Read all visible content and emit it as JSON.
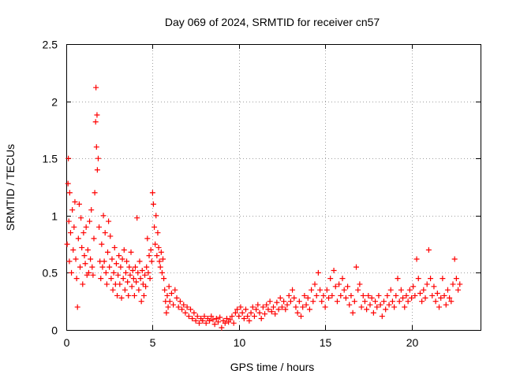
{
  "chart_data": {
    "type": "scatter",
    "title": "Day 069 of 2024, SRMTID for receiver cn57",
    "xlabel": "GPS time / hours",
    "ylabel": "SRMTID / TECUs",
    "xlim": [
      0,
      24
    ],
    "ylim": [
      0,
      2.5
    ],
    "x_ticks": [
      0,
      5,
      10,
      15,
      20
    ],
    "x_tick_labels": [
      "0",
      "5",
      "10",
      "15",
      "20"
    ],
    "y_ticks": [
      0,
      0.5,
      1,
      1.5,
      2,
      2.5
    ],
    "y_tick_labels": [
      "0",
      "0.5",
      "1",
      "1.5",
      "2",
      "2.5"
    ],
    "grid": true,
    "marker": "+",
    "color": "#ff0000",
    "series": [
      {
        "name": "cn57",
        "points": [
          [
            0.05,
            0.75
          ],
          [
            0.1,
            1.28
          ],
          [
            0.12,
            1.5
          ],
          [
            0.15,
            0.95
          ],
          [
            0.18,
            0.6
          ],
          [
            0.2,
            1.2
          ],
          [
            0.25,
            0.85
          ],
          [
            0.3,
            0.5
          ],
          [
            0.35,
            1.05
          ],
          [
            0.4,
            0.7
          ],
          [
            0.45,
            0.9
          ],
          [
            0.5,
            1.12
          ],
          [
            0.55,
            0.62
          ],
          [
            0.6,
            0.45
          ],
          [
            0.65,
            0.2
          ],
          [
            0.7,
            0.8
          ],
          [
            0.75,
            1.1
          ],
          [
            0.8,
            0.55
          ],
          [
            0.85,
            0.98
          ],
          [
            0.9,
            0.72
          ],
          [
            0.95,
            0.4
          ],
          [
            1.0,
            0.85
          ],
          [
            1.05,
            0.65
          ],
          [
            1.1,
            0.58
          ],
          [
            1.15,
            0.9
          ],
          [
            1.2,
            0.48
          ],
          [
            1.25,
            0.7
          ],
          [
            1.3,
            0.5
          ],
          [
            1.35,
            0.95
          ],
          [
            1.4,
            0.62
          ],
          [
            1.45,
            1.05
          ],
          [
            1.5,
            0.55
          ],
          [
            1.55,
            0.48
          ],
          [
            1.6,
            0.8
          ],
          [
            1.65,
            1.2
          ],
          [
            1.7,
            1.82
          ],
          [
            1.72,
            2.12
          ],
          [
            1.75,
            1.6
          ],
          [
            1.78,
            1.88
          ],
          [
            1.8,
            1.4
          ],
          [
            1.85,
            1.5
          ],
          [
            1.9,
            0.9
          ],
          [
            1.95,
            0.6
          ],
          [
            2.0,
            0.45
          ],
          [
            2.05,
            0.75
          ],
          [
            2.1,
            0.55
          ],
          [
            2.15,
            1.0
          ],
          [
            2.2,
            0.6
          ],
          [
            2.25,
            0.85
          ],
          [
            2.3,
            0.5
          ],
          [
            2.35,
            0.4
          ],
          [
            2.4,
            0.68
          ],
          [
            2.45,
            0.95
          ],
          [
            2.5,
            0.55
          ],
          [
            2.55,
            0.82
          ],
          [
            2.6,
            0.45
          ],
          [
            2.65,
            0.62
          ],
          [
            2.7,
            0.35
          ],
          [
            2.75,
            0.5
          ],
          [
            2.8,
            0.72
          ],
          [
            2.85,
            0.4
          ],
          [
            2.9,
            0.58
          ],
          [
            2.95,
            0.3
          ],
          [
            3.0,
            0.48
          ],
          [
            3.05,
            0.65
          ],
          [
            3.1,
            0.4
          ],
          [
            3.15,
            0.55
          ],
          [
            3.2,
            0.28
          ],
          [
            3.25,
            0.62
          ],
          [
            3.3,
            0.45
          ],
          [
            3.35,
            0.7
          ],
          [
            3.4,
            0.35
          ],
          [
            3.45,
            0.5
          ],
          [
            3.5,
            0.6
          ],
          [
            3.55,
            0.42
          ],
          [
            3.6,
            0.3
          ],
          [
            3.65,
            0.55
          ],
          [
            3.7,
            0.48
          ],
          [
            3.75,
            0.68
          ],
          [
            3.8,
            0.38
          ],
          [
            3.85,
            0.52
          ],
          [
            3.9,
            0.45
          ],
          [
            3.95,
            0.3
          ],
          [
            4.0,
            0.55
          ],
          [
            4.05,
            0.42
          ],
          [
            4.1,
            0.98
          ],
          [
            4.15,
            0.5
          ],
          [
            4.2,
            0.35
          ],
          [
            4.25,
            0.6
          ],
          [
            4.3,
            0.45
          ],
          [
            4.35,
            0.25
          ],
          [
            4.4,
            0.52
          ],
          [
            4.45,
            0.4
          ],
          [
            4.5,
            0.3
          ],
          [
            4.55,
            0.48
          ],
          [
            4.6,
            0.38
          ],
          [
            4.65,
            0.55
          ],
          [
            4.7,
            0.8
          ],
          [
            4.75,
            0.5
          ],
          [
            4.8,
            0.65
          ],
          [
            4.85,
            0.45
          ],
          [
            4.9,
            0.7
          ],
          [
            4.95,
            0.6
          ],
          [
            5.0,
            1.2
          ],
          [
            5.05,
            1.1
          ],
          [
            5.1,
            0.9
          ],
          [
            5.15,
            0.75
          ],
          [
            5.2,
            1.0
          ],
          [
            5.25,
            0.65
          ],
          [
            5.3,
            0.85
          ],
          [
            5.35,
            0.72
          ],
          [
            5.4,
            0.6
          ],
          [
            5.45,
            0.55
          ],
          [
            5.5,
            0.68
          ],
          [
            5.55,
            0.5
          ],
          [
            5.6,
            0.62
          ],
          [
            5.65,
            0.45
          ],
          [
            5.7,
            0.35
          ],
          [
            5.75,
            0.25
          ],
          [
            5.8,
            0.15
          ],
          [
            5.85,
            0.3
          ],
          [
            5.9,
            0.2
          ],
          [
            5.95,
            0.38
          ],
          [
            6.0,
            0.25
          ],
          [
            6.1,
            0.32
          ],
          [
            6.2,
            0.22
          ],
          [
            6.3,
            0.35
          ],
          [
            6.4,
            0.28
          ],
          [
            6.5,
            0.2
          ],
          [
            6.6,
            0.25
          ],
          [
            6.7,
            0.18
          ],
          [
            6.8,
            0.22
          ],
          [
            6.9,
            0.15
          ],
          [
            7.0,
            0.2
          ],
          [
            7.1,
            0.12
          ],
          [
            7.2,
            0.18
          ],
          [
            7.3,
            0.1
          ],
          [
            7.4,
            0.15
          ],
          [
            7.5,
            0.08
          ],
          [
            7.6,
            0.12
          ],
          [
            7.7,
            0.06
          ],
          [
            7.8,
            0.1
          ],
          [
            7.9,
            0.08
          ],
          [
            8.0,
            0.12
          ],
          [
            8.1,
            0.06
          ],
          [
            8.2,
            0.1
          ],
          [
            8.3,
            0.08
          ],
          [
            8.4,
            0.12
          ],
          [
            8.5,
            0.09
          ],
          [
            8.6,
            0.05
          ],
          [
            8.7,
            0.1
          ],
          [
            8.8,
            0.07
          ],
          [
            8.9,
            0.11
          ],
          [
            9.0,
            0.02
          ],
          [
            9.1,
            0.08
          ],
          [
            9.2,
            0.06
          ],
          [
            9.3,
            0.1
          ],
          [
            9.4,
            0.07
          ],
          [
            9.5,
            0.09
          ],
          [
            9.6,
            0.12
          ],
          [
            9.7,
            0.06
          ],
          [
            9.8,
            0.15
          ],
          [
            9.9,
            0.18
          ],
          [
            10.0,
            0.12
          ],
          [
            10.1,
            0.2
          ],
          [
            10.2,
            0.15
          ],
          [
            10.3,
            0.1
          ],
          [
            10.4,
            0.18
          ],
          [
            10.5,
            0.12
          ],
          [
            10.6,
            0.08
          ],
          [
            10.7,
            0.15
          ],
          [
            10.8,
            0.2
          ],
          [
            10.9,
            0.12
          ],
          [
            11.0,
            0.18
          ],
          [
            11.1,
            0.22
          ],
          [
            11.2,
            0.15
          ],
          [
            11.3,
            0.1
          ],
          [
            11.4,
            0.2
          ],
          [
            11.5,
            0.14
          ],
          [
            11.6,
            0.22
          ],
          [
            11.7,
            0.18
          ],
          [
            11.8,
            0.25
          ],
          [
            11.9,
            0.16
          ],
          [
            12.0,
            0.2
          ],
          [
            12.1,
            0.14
          ],
          [
            12.2,
            0.24
          ],
          [
            12.3,
            0.18
          ],
          [
            12.4,
            0.28
          ],
          [
            12.5,
            0.2
          ],
          [
            12.6,
            0.25
          ],
          [
            12.7,
            0.18
          ],
          [
            12.8,
            0.22
          ],
          [
            12.9,
            0.3
          ],
          [
            13.0,
            0.25
          ],
          [
            13.1,
            0.35
          ],
          [
            13.2,
            0.28
          ],
          [
            13.3,
            0.2
          ],
          [
            13.4,
            0.15
          ],
          [
            13.5,
            0.25
          ],
          [
            13.6,
            0.12
          ],
          [
            13.7,
            0.2
          ],
          [
            13.8,
            0.3
          ],
          [
            13.9,
            0.22
          ],
          [
            14.0,
            0.28
          ],
          [
            14.1,
            0.18
          ],
          [
            14.2,
            0.35
          ],
          [
            14.3,
            0.25
          ],
          [
            14.4,
            0.4
          ],
          [
            14.5,
            0.3
          ],
          [
            14.6,
            0.5
          ],
          [
            14.7,
            0.35
          ],
          [
            14.8,
            0.25
          ],
          [
            14.9,
            0.3
          ],
          [
            15.0,
            0.2
          ],
          [
            15.1,
            0.35
          ],
          [
            15.2,
            0.28
          ],
          [
            15.3,
            0.45
          ],
          [
            15.4,
            0.3
          ],
          [
            15.5,
            0.52
          ],
          [
            15.6,
            0.38
          ],
          [
            15.7,
            0.25
          ],
          [
            15.8,
            0.4
          ],
          [
            15.9,
            0.3
          ],
          [
            16.0,
            0.45
          ],
          [
            16.1,
            0.35
          ],
          [
            16.2,
            0.28
          ],
          [
            16.3,
            0.38
          ],
          [
            16.4,
            0.22
          ],
          [
            16.5,
            0.3
          ],
          [
            16.6,
            0.15
          ],
          [
            16.7,
            0.25
          ],
          [
            16.8,
            0.55
          ],
          [
            16.9,
            0.35
          ],
          [
            17.0,
            0.4
          ],
          [
            17.1,
            0.2
          ],
          [
            17.2,
            0.3
          ],
          [
            17.3,
            0.25
          ],
          [
            17.4,
            0.18
          ],
          [
            17.5,
            0.3
          ],
          [
            17.6,
            0.22
          ],
          [
            17.7,
            0.28
          ],
          [
            17.8,
            0.15
          ],
          [
            17.9,
            0.25
          ],
          [
            18.0,
            0.2
          ],
          [
            18.1,
            0.3
          ],
          [
            18.2,
            0.22
          ],
          [
            18.3,
            0.12
          ],
          [
            18.4,
            0.25
          ],
          [
            18.5,
            0.18
          ],
          [
            18.6,
            0.3
          ],
          [
            18.7,
            0.22
          ],
          [
            18.8,
            0.35
          ],
          [
            18.9,
            0.25
          ],
          [
            19.0,
            0.2
          ],
          [
            19.1,
            0.3
          ],
          [
            19.2,
            0.45
          ],
          [
            19.3,
            0.25
          ],
          [
            19.4,
            0.35
          ],
          [
            19.5,
            0.28
          ],
          [
            19.6,
            0.2
          ],
          [
            19.7,
            0.3
          ],
          [
            19.8,
            0.25
          ],
          [
            19.9,
            0.35
          ],
          [
            20.0,
            0.28
          ],
          [
            20.1,
            0.38
          ],
          [
            20.2,
            0.3
          ],
          [
            20.3,
            0.62
          ],
          [
            20.4,
            0.45
          ],
          [
            20.5,
            0.32
          ],
          [
            20.6,
            0.25
          ],
          [
            20.7,
            0.35
          ],
          [
            20.8,
            0.28
          ],
          [
            20.9,
            0.4
          ],
          [
            21.0,
            0.7
          ],
          [
            21.1,
            0.45
          ],
          [
            21.2,
            0.3
          ],
          [
            21.3,
            0.38
          ],
          [
            21.4,
            0.25
          ],
          [
            21.5,
            0.32
          ],
          [
            21.6,
            0.2
          ],
          [
            21.7,
            0.28
          ],
          [
            21.8,
            0.45
          ],
          [
            21.9,
            0.3
          ],
          [
            22.0,
            0.22
          ],
          [
            22.1,
            0.35
          ],
          [
            22.2,
            0.28
          ],
          [
            22.3,
            0.25
          ],
          [
            22.4,
            0.4
          ],
          [
            22.5,
            0.62
          ],
          [
            22.6,
            0.45
          ],
          [
            22.7,
            0.35
          ],
          [
            22.8,
            0.4
          ]
        ]
      }
    ]
  }
}
